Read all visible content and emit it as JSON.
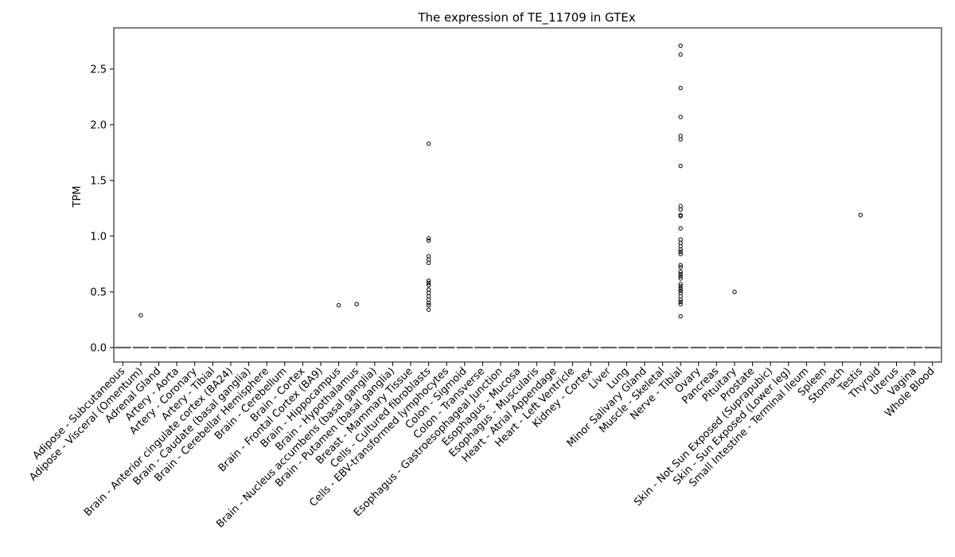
{
  "chart_data": {
    "type": "box",
    "title": "The expression of TE_11709 in GTEx",
    "xlabel": "",
    "ylabel": "TPM",
    "ylim": [
      -0.13,
      2.87
    ],
    "yticks": [
      0.0,
      0.5,
      1.0,
      1.5,
      2.0,
      2.5
    ],
    "ytick_labels": [
      "0.0",
      "0.5",
      "1.0",
      "1.5",
      "2.0",
      "2.5"
    ],
    "grid": false,
    "median_color": "#555555",
    "marker_color": "#000000",
    "categories": [
      "Adipose - Subcutaneous",
      "Adipose - Visceral (Omentum)",
      "Adrenal Gland",
      "Artery - Aorta",
      "Artery - Coronary",
      "Artery - Tibial",
      "Brain - Anterior cingulate cortex (BA24)",
      "Brain - Caudate (basal ganglia)",
      "Brain - Cerebellar Hemisphere",
      "Brain - Cerebellum",
      "Brain - Cortex",
      "Brain - Frontal Cortex (BA9)",
      "Brain - Hippocampus",
      "Brain - Hypothalamus",
      "Brain - Nucleus accumbens (basal ganglia)",
      "Brain - Putamen (basal ganglia)",
      "Breast - Mammary Tissue",
      "Cells - Cultured fibroblasts",
      "Cells - EBV-transformed lymphocytes",
      "Colon - Sigmoid",
      "Colon - Transverse",
      "Esophagus - Gastroesophageal Junction",
      "Esophagus - Mucosa",
      "Esophagus - Muscularis",
      "Heart - Atrial Appendage",
      "Heart - Left Ventricle",
      "Kidney - Cortex",
      "Liver",
      "Lung",
      "Minor Salivary Gland",
      "Muscle - Skeletal",
      "Nerve - Tibial",
      "Ovary",
      "Pancreas",
      "Pituitary",
      "Prostate",
      "Skin - Not Sun Exposed (Suprapubic)",
      "Skin - Sun Exposed (Lower leg)",
      "Small Intestine - Terminal Ileum",
      "Spleen",
      "Stomach",
      "Testis",
      "Thyroid",
      "Uterus",
      "Vagina",
      "Whole Blood"
    ],
    "medians": [
      0,
      0,
      0,
      0,
      0,
      0,
      0,
      0,
      0,
      0,
      0,
      0,
      0,
      0,
      0,
      0,
      0,
      0,
      0,
      0,
      0,
      0,
      0,
      0,
      0,
      0,
      0,
      0,
      0,
      0,
      0,
      0,
      0,
      0,
      0,
      0,
      0,
      0,
      0,
      0,
      0,
      0,
      0,
      0,
      0,
      0
    ],
    "outliers": [
      [],
      [
        0.29
      ],
      [],
      [],
      [],
      [],
      [],
      [],
      [],
      [],
      [],
      [],
      [
        0.38
      ],
      [
        0.39
      ],
      [],
      [],
      [],
      [
        1.83,
        0.98,
        0.96,
        0.82,
        0.79,
        0.76,
        0.6,
        0.58,
        0.56,
        0.52,
        0.49,
        0.46,
        0.43,
        0.4,
        0.38,
        0.34
      ],
      [],
      [],
      [],
      [],
      [],
      [],
      [],
      [],
      [],
      [],
      [],
      [],
      [],
      [
        2.71,
        2.63,
        2.33,
        2.07,
        1.9,
        1.87,
        1.63,
        1.27,
        1.24,
        1.19,
        1.18,
        1.07,
        0.97,
        0.94,
        0.91,
        0.88,
        0.86,
        0.84,
        0.74,
        0.72,
        0.68,
        0.66,
        0.64,
        0.62,
        0.57,
        0.55,
        0.53,
        0.51,
        0.49,
        0.46,
        0.43,
        0.41,
        0.39,
        0.28
      ],
      [],
      [],
      [
        0.5
      ],
      [],
      [],
      [],
      [],
      [],
      [],
      [
        1.19
      ],
      [],
      [],
      [],
      []
    ]
  }
}
